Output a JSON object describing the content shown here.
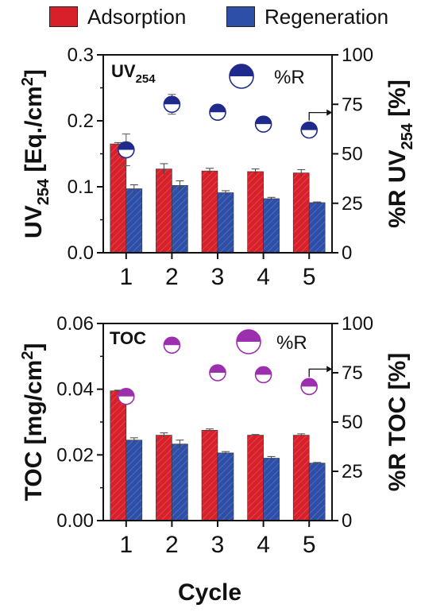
{
  "legend": [
    {
      "label": "Adsorption",
      "color": "#d8202a"
    },
    {
      "label": "Regeneration",
      "color": "#2d4fa8"
    }
  ],
  "xlabel": "Cycle",
  "colors": {
    "adsorption": "#d8202a",
    "regeneration": "#2d4fa8",
    "uv_marker": "#1f2a8c",
    "toc_marker": "#9b2fae"
  },
  "chart_data": [
    {
      "type": "bar",
      "panel_label": "UV",
      "panel_label_sub": "254",
      "categories": [
        "1",
        "2",
        "3",
        "4",
        "5"
      ],
      "ylabel_left": "UV",
      "ylabel_left_sub": "254",
      "ylabel_left_units": " [Eq./cm",
      "ylabel_left_sup": "2",
      "ylabel_left_close": "]",
      "ylabel_right": "%R UV",
      "ylabel_right_sub": "254",
      "ylabel_right_units": " [%]",
      "marker_legend": "%R",
      "ylim_left": [
        0,
        0.3
      ],
      "ylim_right": [
        0,
        100
      ],
      "yticks_left": [
        "0.0",
        "0.1",
        "0.2",
        "0.3"
      ],
      "yticks_right": [
        "0",
        "25",
        "50",
        "75",
        "100"
      ],
      "series": [
        {
          "name": "Adsorption",
          "values": [
            0.165,
            0.127,
            0.124,
            0.123,
            0.121
          ],
          "errors": [
            0.002,
            0.008,
            0.004,
            0.004,
            0.005
          ]
        },
        {
          "name": "Regeneration",
          "values": [
            0.097,
            0.102,
            0.091,
            0.082,
            0.076
          ],
          "errors": [
            0.006,
            0.007,
            0.003,
            0.002,
            0.001
          ]
        }
      ],
      "percent_R": {
        "values": [
          52,
          75,
          71,
          65,
          62
        ],
        "errors": [
          8,
          5,
          1,
          1,
          1
        ]
      }
    },
    {
      "type": "bar",
      "panel_label": "TOC",
      "categories": [
        "1",
        "2",
        "3",
        "4",
        "5"
      ],
      "ylabel_left": "TOC",
      "ylabel_left_units": " [mg/cm",
      "ylabel_left_sup": "2",
      "ylabel_left_close": "]",
      "ylabel_right": "%R TOC [%]",
      "marker_legend": "%R",
      "ylim_left": [
        0,
        0.06
      ],
      "ylim_right": [
        0,
        100
      ],
      "yticks_left": [
        "0.00",
        "0.02",
        "0.04",
        "0.06"
      ],
      "yticks_right": [
        "0",
        "25",
        "50",
        "75",
        "100"
      ],
      "series": [
        {
          "name": "Adsorption",
          "values": [
            0.0395,
            0.026,
            0.0275,
            0.026,
            0.026
          ],
          "errors": [
            0.0002,
            0.0007,
            0.0004,
            0.0002,
            0.0004
          ]
        },
        {
          "name": "Regeneration",
          "values": [
            0.0245,
            0.0233,
            0.0206,
            0.019,
            0.0175
          ],
          "errors": [
            0.0007,
            0.0012,
            0.0004,
            0.0005,
            0.0002
          ]
        }
      ],
      "percent_R": {
        "values": [
          63,
          89,
          75,
          74,
          68
        ],
        "errors": [
          2,
          3,
          2,
          1,
          1
        ]
      }
    }
  ]
}
